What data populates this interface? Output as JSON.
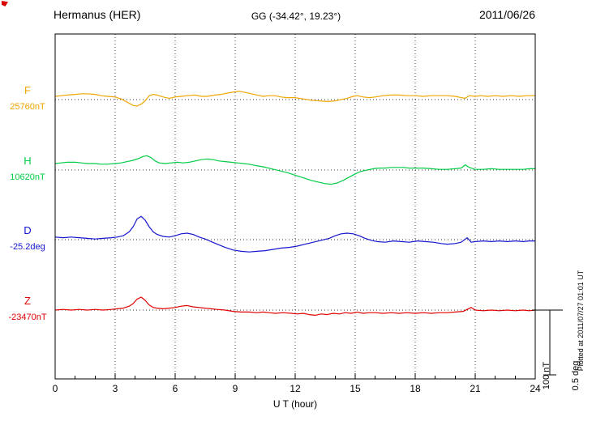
{
  "header": {
    "station": "Hermanus (HER)",
    "coordinates": "GG (-34.42°,  19.23°)",
    "date": "2011/06/26"
  },
  "footer": {
    "plotted_note": "Plotted at 2011/07/27 01:01 UT"
  },
  "chart_data": {
    "type": "line",
    "title": "Hermanus (HER) magnetogram 2011/06/26",
    "xlabel": "U T (hour)",
    "x_range": [
      0,
      24
    ],
    "x_ticks": [
      0,
      3,
      6,
      9,
      12,
      15,
      18,
      21,
      24
    ],
    "grid": {
      "vertical_dotted_at": [
        3,
        6,
        9,
        12,
        15,
        18,
        21
      ]
    },
    "scale_bar": {
      "nT_label": "100 nT",
      "deg_label": "0.5 deg",
      "nT_per_bar": 100,
      "deg_per_bar": 0.5
    },
    "legend_position": "left-margin",
    "series": [
      {
        "name": "F",
        "unit": "nT",
        "base_label": "25760nT",
        "base_value": 25760,
        "color": "#f0a500",
        "points": [
          [
            0,
            5
          ],
          [
            0.3,
            6
          ],
          [
            0.6,
            7
          ],
          [
            1,
            8
          ],
          [
            1.3,
            9
          ],
          [
            1.6,
            9
          ],
          [
            2,
            8
          ],
          [
            2.3,
            6
          ],
          [
            2.6,
            5
          ],
          [
            3,
            4
          ],
          [
            3.3,
            1
          ],
          [
            3.6,
            -4
          ],
          [
            3.9,
            -9
          ],
          [
            4.1,
            -10
          ],
          [
            4.3,
            -7
          ],
          [
            4.5,
            -2
          ],
          [
            4.7,
            6
          ],
          [
            4.9,
            8
          ],
          [
            5.1,
            7
          ],
          [
            5.4,
            4
          ],
          [
            5.7,
            2
          ],
          [
            6,
            4
          ],
          [
            6.3,
            5
          ],
          [
            6.6,
            6
          ],
          [
            7,
            7
          ],
          [
            7.3,
            5
          ],
          [
            7.6,
            5
          ],
          [
            8,
            7
          ],
          [
            8.3,
            8
          ],
          [
            8.6,
            10
          ],
          [
            9,
            12
          ],
          [
            9.2,
            13
          ],
          [
            9.5,
            11
          ],
          [
            9.8,
            9
          ],
          [
            10.1,
            7
          ],
          [
            10.4,
            5
          ],
          [
            10.7,
            6
          ],
          [
            11,
            6
          ],
          [
            11.3,
            4
          ],
          [
            11.6,
            3
          ],
          [
            12,
            3
          ],
          [
            12.4,
            1
          ],
          [
            12.8,
            -1
          ],
          [
            13.2,
            -2
          ],
          [
            13.6,
            -3
          ],
          [
            14,
            -2
          ],
          [
            14.3,
            0
          ],
          [
            14.6,
            2
          ],
          [
            14.9,
            5
          ],
          [
            15.1,
            6
          ],
          [
            15.4,
            4
          ],
          [
            15.7,
            3
          ],
          [
            16,
            4
          ],
          [
            16.4,
            6
          ],
          [
            16.8,
            7
          ],
          [
            17.2,
            7
          ],
          [
            17.6,
            6
          ],
          [
            18,
            6
          ],
          [
            18.4,
            5
          ],
          [
            18.8,
            6
          ],
          [
            19.2,
            6
          ],
          [
            19.6,
            6
          ],
          [
            20,
            5
          ],
          [
            20.3,
            3
          ],
          [
            20.5,
            2
          ],
          [
            20.7,
            6
          ],
          [
            21,
            5
          ],
          [
            21.3,
            6
          ],
          [
            21.6,
            5
          ],
          [
            22,
            6
          ],
          [
            22.4,
            5
          ],
          [
            22.8,
            6
          ],
          [
            23.2,
            5
          ],
          [
            23.6,
            6
          ],
          [
            24,
            6
          ]
        ]
      },
      {
        "name": "H",
        "unit": "nT",
        "base_label": "10620nT",
        "base_value": 10620,
        "color": "#00cc44",
        "points": [
          [
            0,
            10
          ],
          [
            0.3,
            11
          ],
          [
            0.6,
            12
          ],
          [
            1,
            12
          ],
          [
            1.3,
            11
          ],
          [
            1.6,
            10
          ],
          [
            2,
            10
          ],
          [
            2.3,
            9
          ],
          [
            2.6,
            9
          ],
          [
            3,
            10
          ],
          [
            3.3,
            11
          ],
          [
            3.6,
            13
          ],
          [
            3.9,
            15
          ],
          [
            4.2,
            18
          ],
          [
            4.4,
            21
          ],
          [
            4.6,
            22
          ],
          [
            4.8,
            19
          ],
          [
            5,
            14
          ],
          [
            5.2,
            11
          ],
          [
            5.5,
            10
          ],
          [
            5.8,
            11
          ],
          [
            6.1,
            12
          ],
          [
            6.4,
            11
          ],
          [
            6.7,
            12
          ],
          [
            7,
            14
          ],
          [
            7.3,
            16
          ],
          [
            7.6,
            17
          ],
          [
            7.9,
            16
          ],
          [
            8.2,
            14
          ],
          [
            8.5,
            13
          ],
          [
            8.8,
            12
          ],
          [
            9.1,
            11
          ],
          [
            9.4,
            10
          ],
          [
            9.7,
            9
          ],
          [
            10,
            7
          ],
          [
            10.4,
            5
          ],
          [
            10.8,
            2
          ],
          [
            11.2,
            -1
          ],
          [
            11.6,
            -4
          ],
          [
            12,
            -8
          ],
          [
            12.4,
            -12
          ],
          [
            12.8,
            -16
          ],
          [
            13.2,
            -19
          ],
          [
            13.5,
            -21
          ],
          [
            13.8,
            -22
          ],
          [
            14.1,
            -20
          ],
          [
            14.4,
            -16
          ],
          [
            14.7,
            -11
          ],
          [
            15,
            -6
          ],
          [
            15.3,
            -2
          ],
          [
            15.6,
            0
          ],
          [
            15.9,
            2
          ],
          [
            16.2,
            3
          ],
          [
            16.5,
            3
          ],
          [
            16.8,
            4
          ],
          [
            17.1,
            4
          ],
          [
            17.4,
            4
          ],
          [
            17.7,
            3
          ],
          [
            18,
            3
          ],
          [
            18.4,
            3
          ],
          [
            18.8,
            2
          ],
          [
            19.2,
            1
          ],
          [
            19.6,
            1
          ],
          [
            20,
            2
          ],
          [
            20.3,
            3
          ],
          [
            20.5,
            8
          ],
          [
            20.7,
            4
          ],
          [
            21,
            1
          ],
          [
            21.4,
            1
          ],
          [
            21.8,
            2
          ],
          [
            22.2,
            1
          ],
          [
            22.6,
            1
          ],
          [
            23,
            1
          ],
          [
            23.4,
            1
          ],
          [
            23.7,
            2
          ],
          [
            24,
            2
          ]
        ]
      },
      {
        "name": "D",
        "unit": "deg",
        "base_label": "-25.2deg",
        "base_value": -25.2,
        "color": "#1515d0",
        "points": [
          [
            0,
            0.02
          ],
          [
            0.4,
            0.015
          ],
          [
            0.8,
            0.02
          ],
          [
            1.2,
            0.015
          ],
          [
            1.6,
            0.01
          ],
          [
            2,
            0.005
          ],
          [
            2.4,
            0.01
          ],
          [
            2.8,
            0.015
          ],
          [
            3.1,
            0.02
          ],
          [
            3.4,
            0.03
          ],
          [
            3.7,
            0.06
          ],
          [
            3.9,
            0.1
          ],
          [
            4.1,
            0.16
          ],
          [
            4.3,
            0.18
          ],
          [
            4.5,
            0.15
          ],
          [
            4.7,
            0.1
          ],
          [
            4.9,
            0.06
          ],
          [
            5.1,
            0.04
          ],
          [
            5.4,
            0.025
          ],
          [
            5.7,
            0.02
          ],
          [
            6,
            0.03
          ],
          [
            6.3,
            0.045
          ],
          [
            6.6,
            0.05
          ],
          [
            6.9,
            0.04
          ],
          [
            7.2,
            0.02
          ],
          [
            7.5,
            0.005
          ],
          [
            7.8,
            -0.015
          ],
          [
            8.1,
            -0.035
          ],
          [
            8.5,
            -0.06
          ],
          [
            8.9,
            -0.08
          ],
          [
            9.3,
            -0.09
          ],
          [
            9.7,
            -0.095
          ],
          [
            10.1,
            -0.09
          ],
          [
            10.5,
            -0.085
          ],
          [
            10.9,
            -0.075
          ],
          [
            11.3,
            -0.065
          ],
          [
            11.7,
            -0.06
          ],
          [
            12.1,
            -0.05
          ],
          [
            12.5,
            -0.035
          ],
          [
            12.9,
            -0.02
          ],
          [
            13.3,
            -0.005
          ],
          [
            13.7,
            0.01
          ],
          [
            14,
            0.03
          ],
          [
            14.3,
            0.045
          ],
          [
            14.6,
            0.05
          ],
          [
            14.9,
            0.045
          ],
          [
            15.2,
            0.03
          ],
          [
            15.5,
            0.01
          ],
          [
            15.8,
            -0.005
          ],
          [
            16.1,
            -0.015
          ],
          [
            16.5,
            -0.02
          ],
          [
            16.9,
            -0.01
          ],
          [
            17.3,
            -0.015
          ],
          [
            17.7,
            -0.02
          ],
          [
            18.1,
            -0.01
          ],
          [
            18.5,
            -0.015
          ],
          [
            18.9,
            -0.02
          ],
          [
            19.3,
            -0.03
          ],
          [
            19.6,
            -0.035
          ],
          [
            20,
            -0.03
          ],
          [
            20.3,
            -0.02
          ],
          [
            20.6,
            0.015
          ],
          [
            20.8,
            -0.02
          ],
          [
            21,
            -0.015
          ],
          [
            21.4,
            -0.01
          ],
          [
            21.8,
            -0.015
          ],
          [
            22.2,
            -0.01
          ],
          [
            22.6,
            -0.015
          ],
          [
            23,
            -0.01
          ],
          [
            23.4,
            -0.015
          ],
          [
            23.7,
            -0.01
          ],
          [
            24,
            -0.01
          ]
        ]
      },
      {
        "name": "Z",
        "unit": "nT",
        "base_label": "-23470nT",
        "base_value": -23470,
        "color": "#e00000",
        "points": [
          [
            0,
            0
          ],
          [
            0.4,
            1
          ],
          [
            0.8,
            0
          ],
          [
            1.2,
            1
          ],
          [
            1.6,
            0
          ],
          [
            2,
            1
          ],
          [
            2.4,
            0
          ],
          [
            2.8,
            1
          ],
          [
            3.1,
            2
          ],
          [
            3.4,
            3
          ],
          [
            3.7,
            6
          ],
          [
            3.9,
            10
          ],
          [
            4.1,
            17
          ],
          [
            4.3,
            20
          ],
          [
            4.5,
            15
          ],
          [
            4.7,
            8
          ],
          [
            4.9,
            4
          ],
          [
            5.1,
            3
          ],
          [
            5.4,
            2
          ],
          [
            5.7,
            3
          ],
          [
            6,
            4
          ],
          [
            6.3,
            6
          ],
          [
            6.6,
            7
          ],
          [
            6.9,
            5
          ],
          [
            7.2,
            4
          ],
          [
            7.5,
            3
          ],
          [
            7.8,
            2
          ],
          [
            8.1,
            1
          ],
          [
            8.5,
            0
          ],
          [
            8.9,
            -2
          ],
          [
            9.3,
            -3
          ],
          [
            9.7,
            -3
          ],
          [
            10.1,
            -4
          ],
          [
            10.4,
            -3
          ],
          [
            10.7,
            -4
          ],
          [
            11,
            -5
          ],
          [
            11.4,
            -4
          ],
          [
            11.8,
            -5
          ],
          [
            12.1,
            -6
          ],
          [
            12.4,
            -5
          ],
          [
            12.7,
            -7
          ],
          [
            13,
            -8
          ],
          [
            13.3,
            -6
          ],
          [
            13.6,
            -7
          ],
          [
            13.9,
            -5
          ],
          [
            14.2,
            -6
          ],
          [
            14.5,
            -4
          ],
          [
            14.8,
            -5
          ],
          [
            15.1,
            -3
          ],
          [
            15.4,
            -5
          ],
          [
            15.7,
            -4
          ],
          [
            16,
            -4
          ],
          [
            16.4,
            -5
          ],
          [
            16.8,
            -4
          ],
          [
            17.2,
            -5
          ],
          [
            17.6,
            -4
          ],
          [
            18,
            -5
          ],
          [
            18.4,
            -4
          ],
          [
            18.8,
            -5
          ],
          [
            19.2,
            -4
          ],
          [
            19.6,
            -4
          ],
          [
            20,
            -3
          ],
          [
            20.4,
            -2
          ],
          [
            20.6,
            1
          ],
          [
            20.8,
            4
          ],
          [
            21,
            0
          ],
          [
            21.4,
            -1
          ],
          [
            21.8,
            0
          ],
          [
            22.2,
            -1
          ],
          [
            22.6,
            0
          ],
          [
            23,
            -1
          ],
          [
            23.4,
            0
          ],
          [
            23.7,
            -1
          ],
          [
            24,
            0
          ]
        ]
      }
    ]
  }
}
